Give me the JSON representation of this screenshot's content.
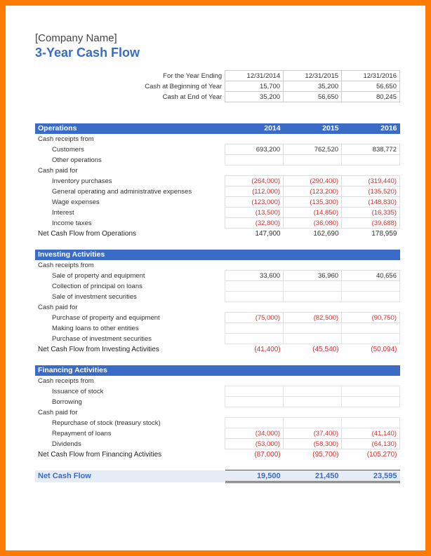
{
  "header": {
    "company_name": "[Company Name]",
    "title": "3-Year Cash Flow"
  },
  "summary": {
    "rows": [
      {
        "label": "For the Year Ending",
        "y1": "12/31/2014",
        "y2": "12/31/2015",
        "y3": "12/31/2016"
      },
      {
        "label": "Cash at Beginning of Year",
        "y1": "15,700",
        "y2": "35,200",
        "y3": "56,650"
      },
      {
        "label": "Cash at End of Year",
        "y1": "35,200",
        "y2": "56,650",
        "y3": "80,245"
      }
    ]
  },
  "sections": [
    {
      "title": "Operations",
      "years": [
        "2014",
        "2015",
        "2016"
      ],
      "groups": [
        {
          "label": "Cash receipts from",
          "rows": [
            {
              "label": "Customers",
              "y1": "693,200",
              "y2": "762,520",
              "y3": "838,772"
            },
            {
              "label": "Other operations",
              "y1": "",
              "y2": "",
              "y3": ""
            }
          ]
        },
        {
          "label": "Cash paid for",
          "rows": [
            {
              "label": "Inventory purchases",
              "y1": "(264,000)",
              "y2": "(290,400)",
              "y3": "(319,440)",
              "neg": true
            },
            {
              "label": "General operating and administrative expenses",
              "y1": "(112,000)",
              "y2": "(123,200)",
              "y3": "(135,520)",
              "neg": true
            },
            {
              "label": "Wage expenses",
              "y1": "(123,000)",
              "y2": "(135,300)",
              "y3": "(148,830)",
              "neg": true
            },
            {
              "label": "Interest",
              "y1": "(13,500)",
              "y2": "(14,850)",
              "y3": "(16,335)",
              "neg": true
            },
            {
              "label": "Income taxes",
              "y1": "(32,800)",
              "y2": "(36,080)",
              "y3": "(39,688)",
              "neg": true
            }
          ]
        }
      ],
      "net": {
        "label": "Net Cash Flow from Operations",
        "y1": "147,900",
        "y2": "162,690",
        "y3": "178,959"
      }
    },
    {
      "title": "Investing Activities",
      "years": [
        "",
        "",
        ""
      ],
      "groups": [
        {
          "label": "Cash receipts from",
          "rows": [
            {
              "label": "Sale of property and equipment",
              "y1": "33,600",
              "y2": "36,960",
              "y3": "40,656"
            },
            {
              "label": "Collection of principal on loans",
              "y1": "",
              "y2": "",
              "y3": ""
            },
            {
              "label": "Sale of investment securities",
              "y1": "",
              "y2": "",
              "y3": ""
            }
          ]
        },
        {
          "label": "Cash paid for",
          "rows": [
            {
              "label": "Purchase of property and equipment",
              "y1": "(75,000)",
              "y2": "(82,500)",
              "y3": "(90,750)",
              "neg": true
            },
            {
              "label": "Making loans to other entities",
              "y1": "",
              "y2": "",
              "y3": ""
            },
            {
              "label": "Purchase of investment securities",
              "y1": "",
              "y2": "",
              "y3": ""
            }
          ]
        }
      ],
      "net": {
        "label": "Net Cash Flow from Investing Activities",
        "y1": "(41,400)",
        "y2": "(45,540)",
        "y3": "(50,094)",
        "neg": true
      }
    },
    {
      "title": "Financing Activities",
      "years": [
        "",
        "",
        ""
      ],
      "groups": [
        {
          "label": "Cash receipts from",
          "rows": [
            {
              "label": "Issuance of stock",
              "y1": "",
              "y2": "",
              "y3": ""
            },
            {
              "label": "Borrowing",
              "y1": "",
              "y2": "",
              "y3": ""
            }
          ]
        },
        {
          "label": "Cash paid for",
          "rows": [
            {
              "label": "Repurchase of stock (treasury stock)",
              "y1": "",
              "y2": "",
              "y3": ""
            },
            {
              "label": "Repayment of loans",
              "y1": "(34,000)",
              "y2": "(37,400)",
              "y3": "(41,140)",
              "neg": true
            },
            {
              "label": "Dividends",
              "y1": "(53,000)",
              "y2": "(58,300)",
              "y3": "(64,130)",
              "neg": true
            }
          ]
        }
      ],
      "net": {
        "label": "Net Cash Flow from Financing Activities",
        "y1": "(87,000)",
        "y2": "(95,700)",
        "y3": "(105,270)",
        "neg": true
      }
    }
  ],
  "final": {
    "label": "Net Cash Flow",
    "y1": "19,500",
    "y2": "21,450",
    "y3": "23,595"
  },
  "colors": {
    "border": "#ff7a00",
    "primary": "#3a6bc7",
    "neg": "#d43030",
    "final_bg": "#e6ecf6"
  }
}
